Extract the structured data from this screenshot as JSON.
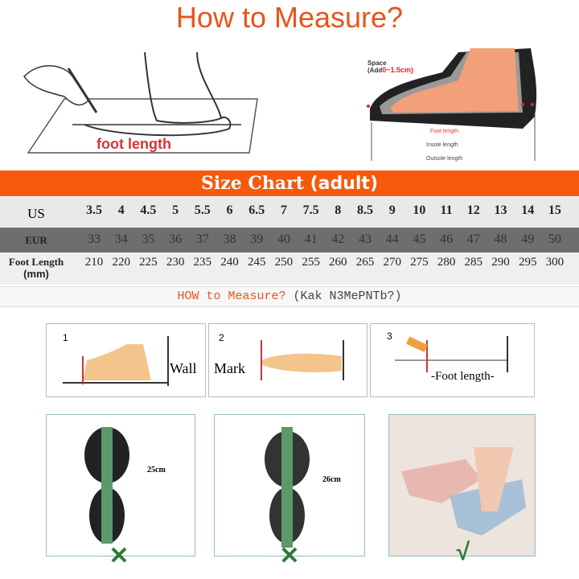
{
  "header": {
    "title": "How to Measure?"
  },
  "illustration_left": {
    "label": "foot length"
  },
  "illustration_right": {
    "space_label": "Space",
    "space_add": "(Add",
    "space_range": "0~1.5cm)",
    "foot_length": "Foot length",
    "insole_length": "Insole length",
    "outsole_length": "Outsole length"
  },
  "size_chart": {
    "title": "Size Chart",
    "title_suffix": "(adult)",
    "rows": [
      {
        "label": "US",
        "values": [
          "3.5",
          "4",
          "4.5",
          "5",
          "5.5",
          "6",
          "6.5",
          "7",
          "7.5",
          "8",
          "8.5",
          "9",
          "10",
          "11",
          "12",
          "13",
          "14",
          "15"
        ]
      },
      {
        "label": "EUR",
        "values": [
          "33",
          "34",
          "35",
          "36",
          "37",
          "38",
          "39",
          "40",
          "41",
          "42",
          "43",
          "44",
          "45",
          "46",
          "47",
          "48",
          "49",
          "50"
        ]
      },
      {
        "label": "Foot Length",
        "label_unit": "(mm)",
        "values": [
          "210",
          "220",
          "225",
          "230",
          "235",
          "240",
          "245",
          "250",
          "255",
          "260",
          "265",
          "270",
          "275",
          "280",
          "285",
          "290",
          "295",
          "300"
        ]
      }
    ]
  },
  "how_to": {
    "text": "HOW to Measure?",
    "translation": "(Kak N3MePNTb?)"
  },
  "steps": [
    {
      "number": "1",
      "label": "Wall"
    },
    {
      "number": "2",
      "label": "Mark"
    },
    {
      "number": "3",
      "label": "-Foot length-"
    }
  ],
  "examples": [
    {
      "measurement": "25cm",
      "verdict": "✕"
    },
    {
      "measurement": "26cm",
      "verdict": "✕"
    },
    {
      "measurement": "",
      "verdict": "√"
    }
  ],
  "colors": {
    "accent": "#f55a0c",
    "title": "#e8541b",
    "verdict": "#2b7a3a",
    "eur_row": "#6e6e6e"
  }
}
